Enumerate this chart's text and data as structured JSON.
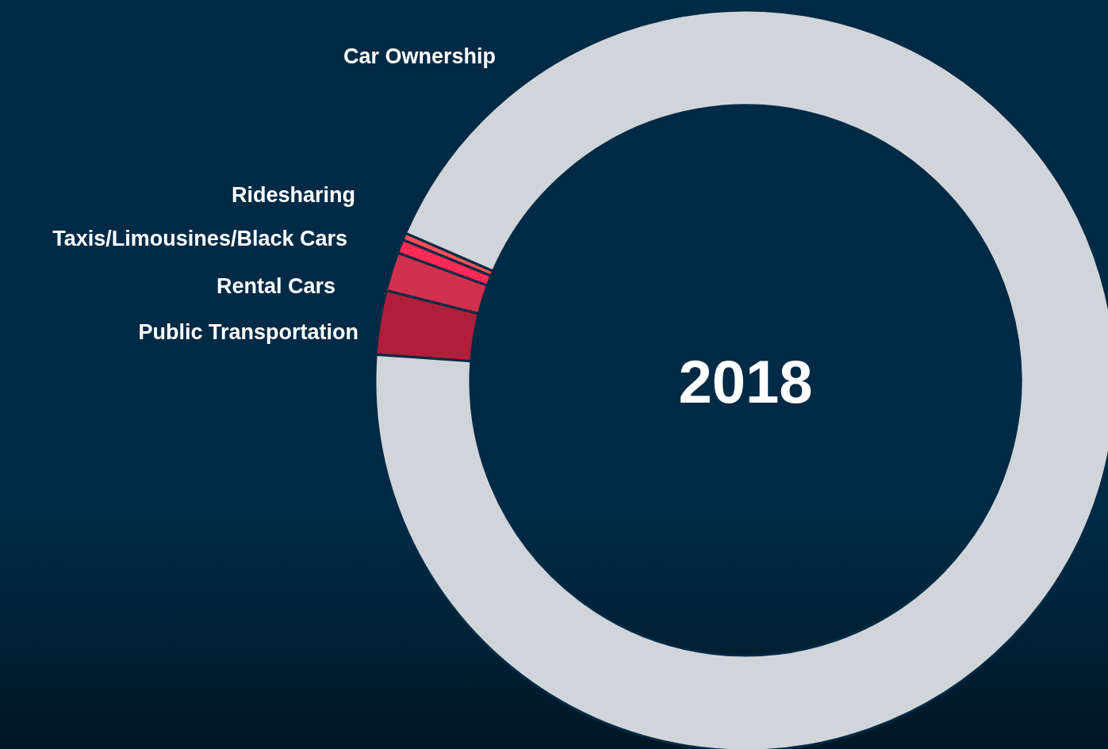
{
  "chart_data": {
    "type": "donut",
    "title": "2018",
    "categories": [
      "Public Transportation",
      "Rental Cars",
      "Taxis/Limousines/Black Cars",
      "Ridesharing",
      "Car Ownership"
    ],
    "values": [
      2.8,
      1.7,
      0.6,
      0.3,
      94.6
    ],
    "colors": [
      "#b01f3a",
      "#d1304d",
      "#ff2a55",
      "#ff4f58",
      "#d0d5da"
    ]
  }
}
